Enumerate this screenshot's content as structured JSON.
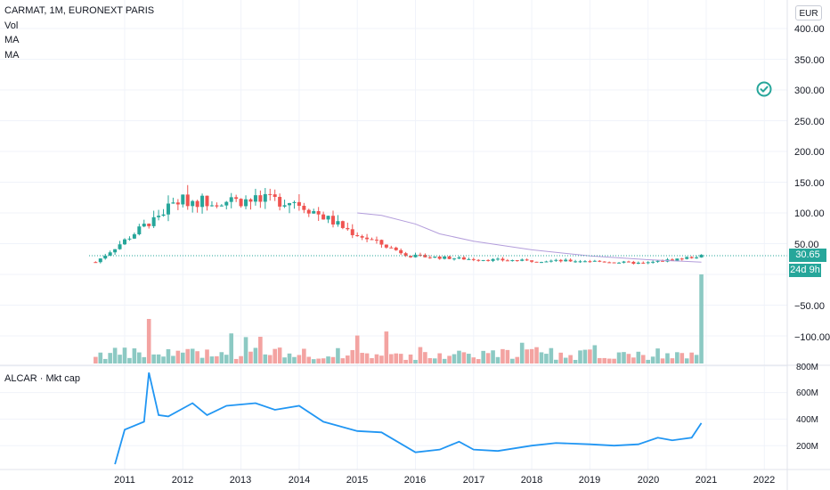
{
  "header": {
    "title": "CARMAT, 1M, EURONEXT PARIS",
    "indicator_1": "Vol",
    "indicator_2": "MA",
    "indicator_3": "MA",
    "currency": "EUR"
  },
  "price_scale": {
    "labels": [
      "400.00",
      "350.00",
      "300.00",
      "250.00",
      "200.00",
      "150.00",
      "100.00",
      "50.00",
      "−50.00",
      "−100.00"
    ],
    "current_price": "30.65",
    "countdown": "24d 9h"
  },
  "lower_pane": {
    "label": "ALCAR · Mkt cap",
    "axis_labels": [
      "800M",
      "600M",
      "400M",
      "200M"
    ]
  },
  "time_axis": {
    "labels": [
      "2011",
      "2012",
      "2013",
      "2014",
      "2015",
      "2016",
      "2017",
      "2018",
      "2019",
      "2020",
      "2021",
      "2022"
    ]
  },
  "colors": {
    "up": "#26a69a",
    "down": "#ef5350",
    "ma": "#b39ddb",
    "mktcap_line": "#2196f3",
    "volume_up": "#8cc9c3",
    "volume_down": "#f3a3a1",
    "grid": "#f0f3fa"
  },
  "chart_data": [
    {
      "type": "candlestick",
      "title": "CARMAT, 1M, EURONEXT PARIS",
      "ylim": [
        -100,
        400
      ],
      "current_price": 30.65,
      "x": [
        "2010-07",
        "2011-12",
        "2012-12",
        "2013-12",
        "2014-12",
        "2015-12",
        "2016-12",
        "2017-12",
        "2018-12",
        "2019-12",
        "2020-12"
      ],
      "close": [
        20,
        120,
        120,
        120,
        68,
        30,
        25,
        22,
        22,
        18,
        30
      ],
      "volume_peaks": [
        "2011-06",
        "2020-12"
      ],
      "ma": [
        {
          "x": "2015-01",
          "y": 100
        },
        {
          "x": "2015-06",
          "y": 96
        },
        {
          "x": "2016-01",
          "y": 82
        },
        {
          "x": "2016-06",
          "y": 66
        },
        {
          "x": "2017-01",
          "y": 54
        },
        {
          "x": "2018-01",
          "y": 40
        },
        {
          "x": "2019-01",
          "y": 30
        },
        {
          "x": "2020-01",
          "y": 24
        },
        {
          "x": "2020-12",
          "y": 20
        }
      ]
    },
    {
      "type": "line",
      "title": "ALCAR · Mkt cap",
      "ylim": [
        0,
        800
      ],
      "x_labels": [
        "2011",
        "2012",
        "2013",
        "2014",
        "2015",
        "2016",
        "2017",
        "2018",
        "2019",
        "2020",
        "2021",
        "2022"
      ],
      "points": [
        {
          "x": "2010-11",
          "y": 60
        },
        {
          "x": "2011-01",
          "y": 320
        },
        {
          "x": "2011-05",
          "y": 380
        },
        {
          "x": "2011-06",
          "y": 750
        },
        {
          "x": "2011-08",
          "y": 430
        },
        {
          "x": "2011-10",
          "y": 420
        },
        {
          "x": "2012-03",
          "y": 520
        },
        {
          "x": "2012-06",
          "y": 430
        },
        {
          "x": "2012-10",
          "y": 500
        },
        {
          "x": "2013-04",
          "y": 520
        },
        {
          "x": "2013-08",
          "y": 470
        },
        {
          "x": "2014-01",
          "y": 500
        },
        {
          "x": "2014-06",
          "y": 380
        },
        {
          "x": "2015-01",
          "y": 310
        },
        {
          "x": "2015-06",
          "y": 300
        },
        {
          "x": "2016-01",
          "y": 150
        },
        {
          "x": "2016-06",
          "y": 170
        },
        {
          "x": "2016-10",
          "y": 230
        },
        {
          "x": "2017-01",
          "y": 170
        },
        {
          "x": "2017-06",
          "y": 160
        },
        {
          "x": "2018-01",
          "y": 200
        },
        {
          "x": "2018-06",
          "y": 220
        },
        {
          "x": "2019-01",
          "y": 210
        },
        {
          "x": "2019-06",
          "y": 200
        },
        {
          "x": "2019-11",
          "y": 210
        },
        {
          "x": "2020-03",
          "y": 260
        },
        {
          "x": "2020-06",
          "y": 240
        },
        {
          "x": "2020-10",
          "y": 260
        },
        {
          "x": "2020-12",
          "y": 370
        }
      ]
    }
  ]
}
